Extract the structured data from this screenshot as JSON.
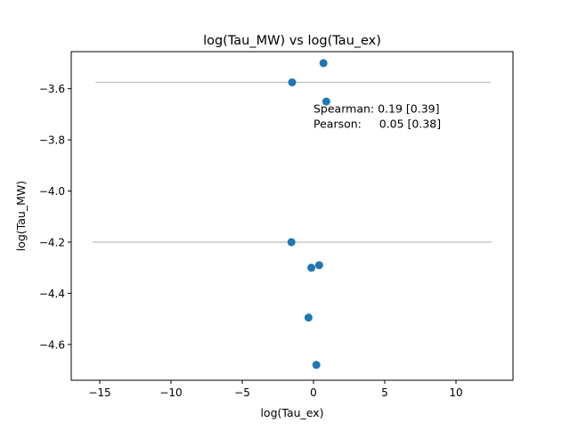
{
  "chart_data": {
    "type": "scatter",
    "title": "log(Tau_MW) vs log(Tau_ex)",
    "xlabel": "log(Tau_ex)",
    "ylabel": "log(Tau_MW)",
    "xlim": [
      -17,
      14
    ],
    "ylim": [
      -4.74,
      -3.455
    ],
    "xticks": [
      -15,
      -10,
      -5,
      0,
      5,
      10
    ],
    "xtick_labels": [
      "−15",
      "−10",
      "−5",
      "0",
      "5",
      "10"
    ],
    "yticks": [
      -3.6,
      -3.8,
      -4.0,
      -4.2,
      -4.4,
      -4.6
    ],
    "ytick_labels": [
      "−3.6",
      "−3.8",
      "−4.0",
      "−4.2",
      "−4.4",
      "−4.6"
    ],
    "grid": false,
    "marker_color": "#1f77b4",
    "reference_line_color": "#c8c8c8",
    "points": [
      {
        "x": 0.7,
        "y": -3.5
      },
      {
        "x": -1.5,
        "y": -3.575
      },
      {
        "x": 0.9,
        "y": -3.65
      },
      {
        "x": -1.55,
        "y": -4.2
      },
      {
        "x": 0.4,
        "y": -4.29
      },
      {
        "x": -0.15,
        "y": -4.3
      },
      {
        "x": -0.35,
        "y": -4.495
      },
      {
        "x": 0.2,
        "y": -4.68
      }
    ],
    "reference_lines": [
      {
        "y": -3.575,
        "x_from": -15.3,
        "x_to": 12.4
      },
      {
        "y": -4.2,
        "x_from": -15.5,
        "x_to": 12.5
      }
    ],
    "annotation": {
      "line1": "Spearman: 0.19 [0.39]",
      "line2": "Pearson:     0.05 [0.38]",
      "x": 0,
      "y": -3.7
    }
  }
}
